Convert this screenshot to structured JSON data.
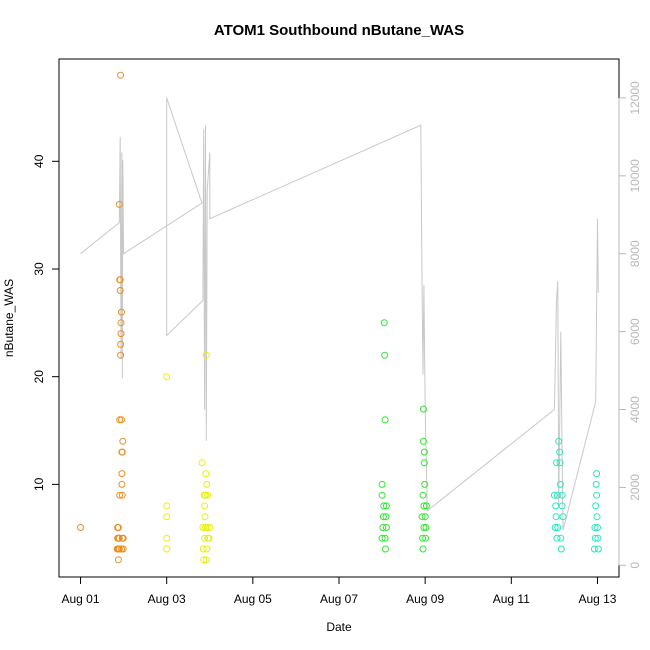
{
  "chart_data": {
    "type": "scatter",
    "title": "ATOM1 Southbound nButane_WAS",
    "xlabel": "Date",
    "ylabel": "nButane_WAS",
    "x_ticks": [
      "Aug 01",
      "Aug 03",
      "Aug 05",
      "Aug 07",
      "Aug 09",
      "Aug 11",
      "Aug 13"
    ],
    "x_tick_days": [
      1,
      3,
      5,
      7,
      9,
      11,
      13
    ],
    "xlim_days": [
      0.5,
      13.5
    ],
    "y_ticks": [
      10,
      20,
      30,
      40
    ],
    "ylim": [
      1.4,
      49.5
    ],
    "y2_ticks": [
      0,
      2000,
      4000,
      6000,
      8000,
      10000,
      12000
    ],
    "y2lim": [
      -300,
      13000
    ],
    "grid": false,
    "series": [
      {
        "color": "#F08C1E",
        "points": [
          [
            1.0,
            6
          ],
          [
            1.85,
            4
          ],
          [
            1.86,
            5
          ],
          [
            1.86,
            6
          ],
          [
            1.87,
            5
          ],
          [
            1.87,
            4
          ],
          [
            1.88,
            3
          ],
          [
            1.88,
            6
          ],
          [
            1.89,
            4
          ],
          [
            1.89,
            5
          ],
          [
            1.9,
            5
          ],
          [
            1.9,
            4
          ],
          [
            1.91,
            9
          ],
          [
            1.91,
            16
          ],
          [
            1.9,
            36
          ],
          [
            1.91,
            29
          ],
          [
            1.92,
            29
          ],
          [
            1.92,
            28
          ],
          [
            1.93,
            23
          ],
          [
            1.93,
            22
          ],
          [
            1.94,
            24
          ],
          [
            1.94,
            25
          ],
          [
            1.95,
            26
          ],
          [
            1.95,
            16
          ],
          [
            1.96,
            13
          ],
          [
            1.96,
            11
          ],
          [
            1.96,
            10
          ],
          [
            1.97,
            9
          ],
          [
            1.97,
            13
          ],
          [
            1.98,
            14
          ],
          [
            1.93,
            48
          ],
          [
            1.98,
            5
          ],
          [
            1.99,
            4
          ],
          [
            1.99,
            5
          ],
          [
            1.95,
            4
          ],
          [
            1.97,
            5
          ]
        ]
      },
      {
        "color": "#E5F00E",
        "points": [
          [
            3.0,
            20
          ],
          [
            3.0,
            8
          ],
          [
            3.0,
            7
          ],
          [
            3.0,
            5
          ],
          [
            3.0,
            4
          ],
          [
            3.82,
            12
          ],
          [
            3.84,
            6
          ],
          [
            3.85,
            4
          ],
          [
            3.86,
            3
          ],
          [
            3.87,
            9
          ],
          [
            3.88,
            8
          ],
          [
            3.88,
            5
          ],
          [
            3.89,
            7
          ],
          [
            3.9,
            9
          ],
          [
            3.9,
            6
          ],
          [
            3.91,
            11
          ],
          [
            3.92,
            22
          ],
          [
            3.92,
            3
          ],
          [
            3.93,
            4
          ],
          [
            3.93,
            10
          ],
          [
            3.94,
            6
          ],
          [
            3.95,
            9
          ],
          [
            3.96,
            5
          ],
          [
            3.98,
            5
          ],
          [
            4.0,
            6
          ]
        ]
      },
      {
        "color": "#2EE82E",
        "points": [
          [
            8.0,
            5
          ],
          [
            8.0,
            9
          ],
          [
            8.0,
            10
          ],
          [
            8.02,
            6
          ],
          [
            8.03,
            7
          ],
          [
            8.04,
            8
          ],
          [
            8.05,
            25
          ],
          [
            8.06,
            22
          ],
          [
            8.07,
            16
          ],
          [
            8.07,
            5
          ],
          [
            8.08,
            4
          ],
          [
            8.1,
            6
          ],
          [
            8.09,
            7
          ],
          [
            8.1,
            8
          ],
          [
            8.93,
            7
          ],
          [
            8.94,
            5
          ],
          [
            8.95,
            4
          ],
          [
            8.95,
            9
          ],
          [
            8.96,
            17
          ],
          [
            8.96,
            14
          ],
          [
            8.97,
            6
          ],
          [
            8.97,
            8
          ],
          [
            8.98,
            13
          ],
          [
            8.98,
            12
          ],
          [
            8.99,
            10
          ],
          [
            9.0,
            7
          ],
          [
            9.01,
            5
          ],
          [
            9.02,
            6
          ],
          [
            9.03,
            8
          ]
        ]
      },
      {
        "color": "#26E8C2",
        "points": [
          [
            12.0,
            9
          ],
          [
            12.02,
            6
          ],
          [
            12.03,
            8
          ],
          [
            12.04,
            7
          ],
          [
            12.05,
            12
          ],
          [
            12.06,
            5
          ],
          [
            12.07,
            9
          ],
          [
            12.08,
            6
          ],
          [
            12.1,
            14
          ],
          [
            12.12,
            13
          ],
          [
            12.13,
            12
          ],
          [
            12.14,
            10
          ],
          [
            12.15,
            5
          ],
          [
            12.16,
            4
          ],
          [
            12.18,
            8
          ],
          [
            12.18,
            9
          ],
          [
            12.2,
            7
          ],
          [
            12.93,
            4
          ],
          [
            12.94,
            6
          ],
          [
            12.95,
            5
          ],
          [
            12.96,
            8
          ],
          [
            12.97,
            10
          ],
          [
            12.98,
            11
          ],
          [
            12.98,
            9
          ],
          [
            12.99,
            7
          ],
          [
            13.0,
            6
          ],
          [
            13.01,
            5
          ],
          [
            13.02,
            4
          ]
        ]
      }
    ],
    "secondary_line": {
      "color": "#c8c8c8",
      "axis": "right",
      "points": [
        [
          1.0,
          8000
        ],
        [
          1.9,
          8800
        ],
        [
          1.92,
          11000
        ],
        [
          1.94,
          5300
        ],
        [
          1.96,
          10600
        ],
        [
          1.97,
          4800
        ],
        [
          1.98,
          10400
        ],
        [
          2.0,
          8000
        ],
        [
          3.82,
          9300
        ],
        [
          3.0,
          12000
        ],
        [
          3.0,
          5900
        ],
        [
          3.84,
          6800
        ],
        [
          3.86,
          11200
        ],
        [
          3.88,
          4000
        ],
        [
          3.9,
          11300
        ],
        [
          3.92,
          3200
        ],
        [
          3.94,
          9600
        ],
        [
          4.0,
          10600
        ],
        [
          4.0,
          8900
        ],
        [
          8.9,
          11300
        ],
        [
          8.93,
          7000
        ],
        [
          8.95,
          4900
        ],
        [
          8.97,
          7200
        ],
        [
          9.0,
          4000
        ],
        [
          9.05,
          1400
        ],
        [
          12.0,
          4000
        ],
        [
          12.05,
          6800
        ],
        [
          12.08,
          7300
        ],
        [
          12.1,
          1500
        ],
        [
          12.15,
          6000
        ],
        [
          12.2,
          900
        ],
        [
          12.96,
          4200
        ],
        [
          13.0,
          8900
        ],
        [
          13.02,
          7000
        ]
      ]
    }
  }
}
